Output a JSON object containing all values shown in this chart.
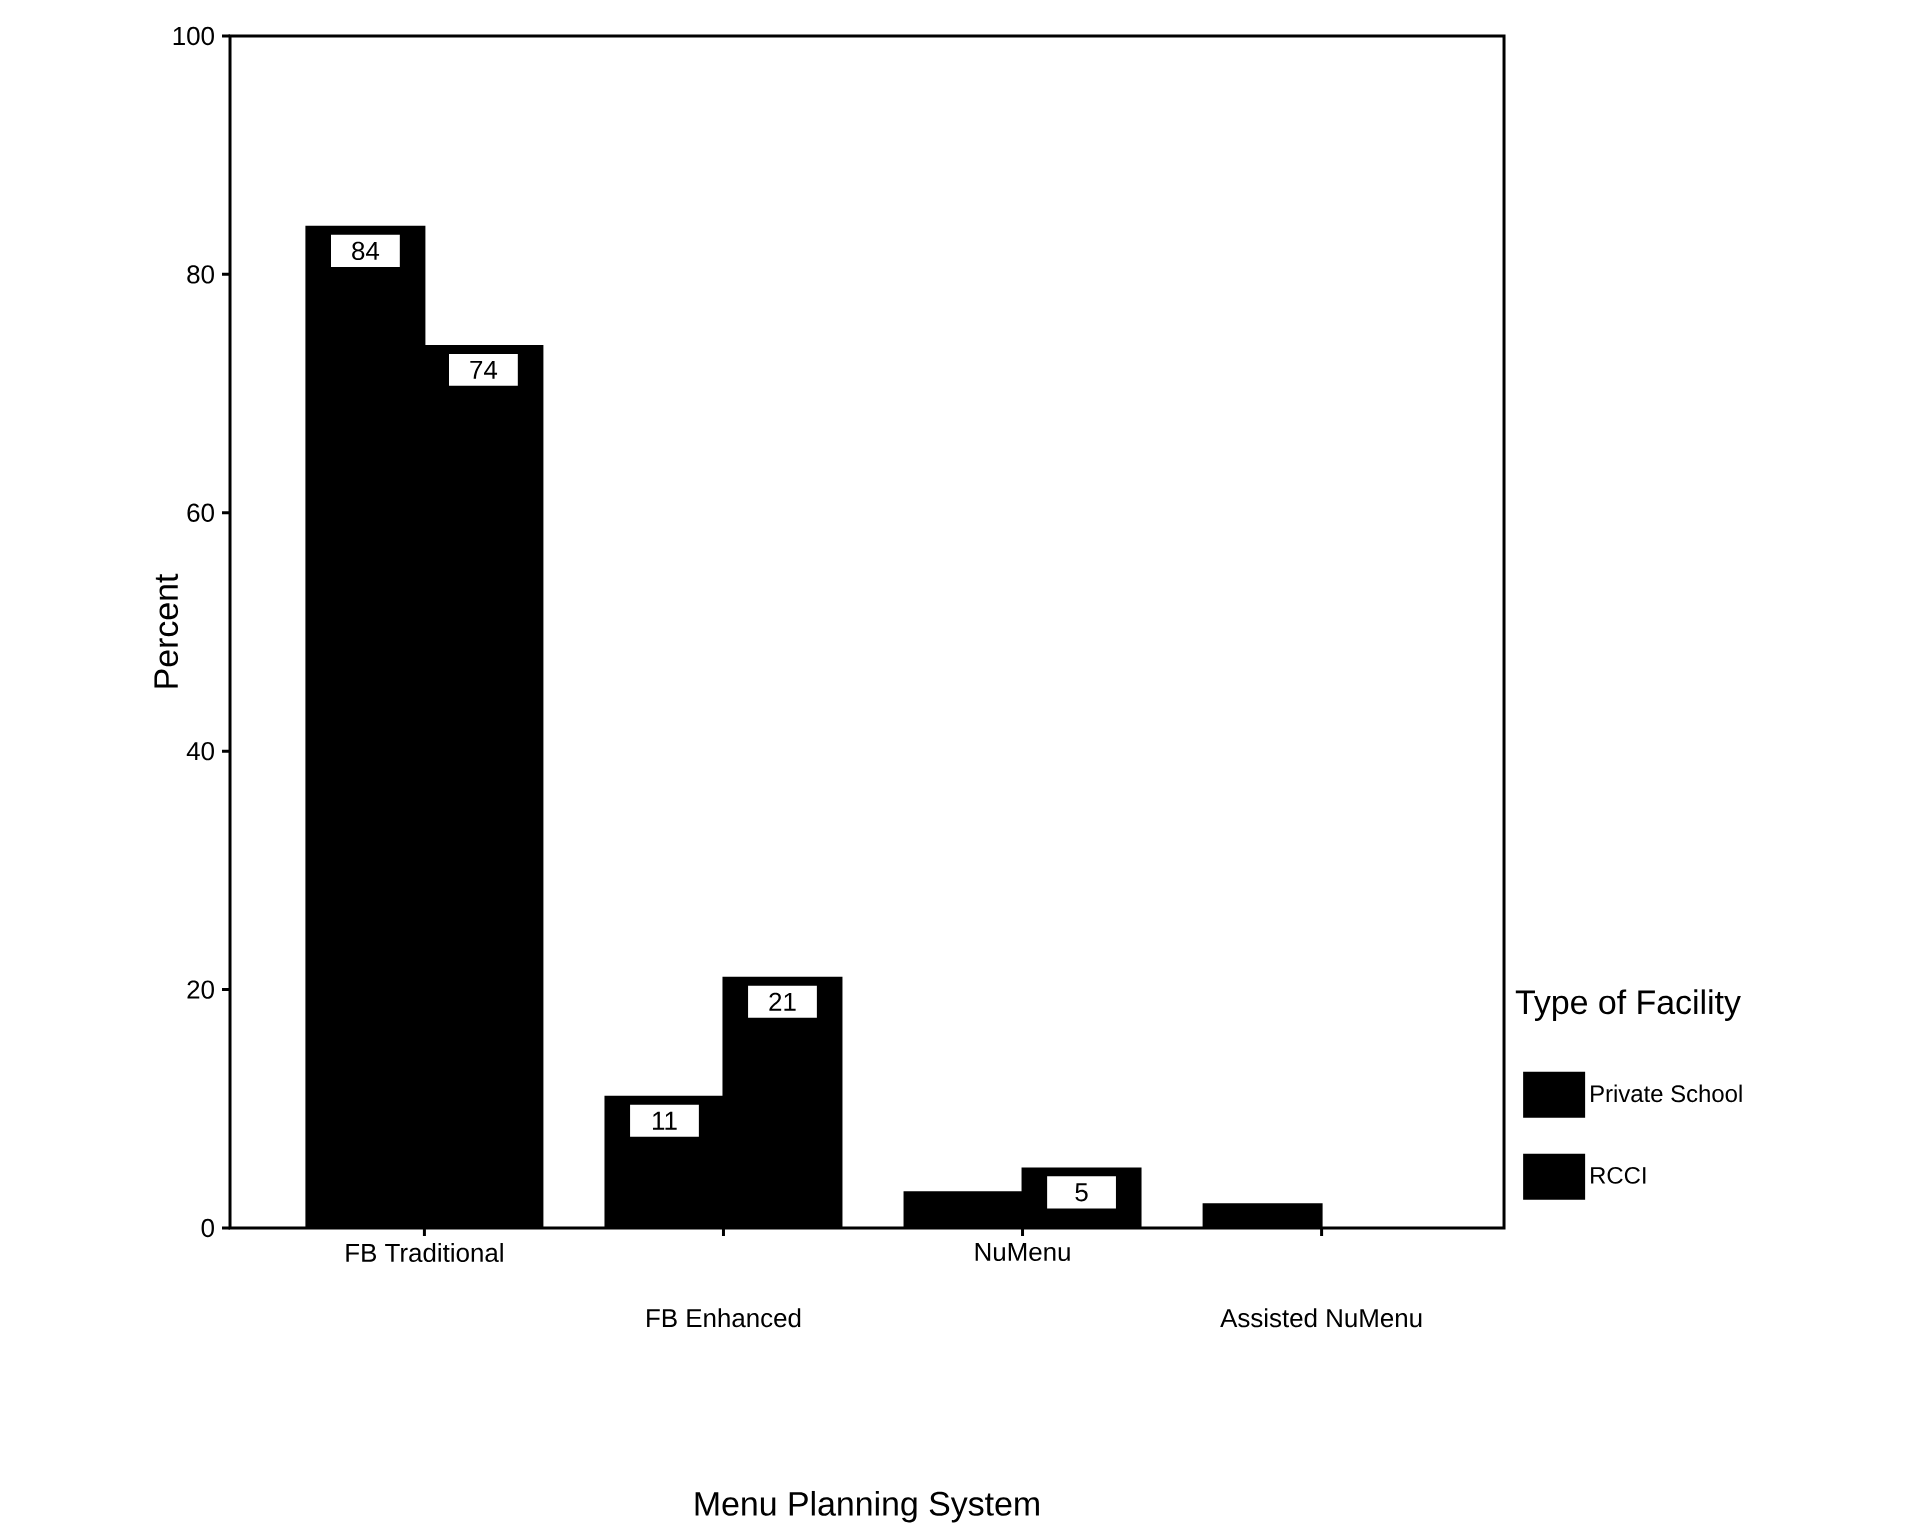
{
  "chart_data": {
    "type": "bar",
    "xlabel": "Menu Planning System",
    "ylabel": "Percent",
    "legend_title": "Type of Facility",
    "legend": "right",
    "categories": [
      "FB Traditional",
      "FB Enhanced",
      "NuMenu",
      "Assisted NuMenu"
    ],
    "series": [
      {
        "name": "Private School",
        "color": "#000000",
        "values": [
          84,
          11,
          3,
          2
        ],
        "value_labels": [
          "84",
          "11",
          null,
          null
        ]
      },
      {
        "name": "RCCI",
        "color": "#000000",
        "values": [
          74,
          21,
          5,
          0
        ],
        "value_labels": [
          "74",
          "21",
          "5",
          null
        ]
      }
    ],
    "ylim": [
      0,
      100
    ],
    "yticks": [
      0,
      20,
      40,
      60,
      80,
      100
    ],
    "grid": false
  }
}
